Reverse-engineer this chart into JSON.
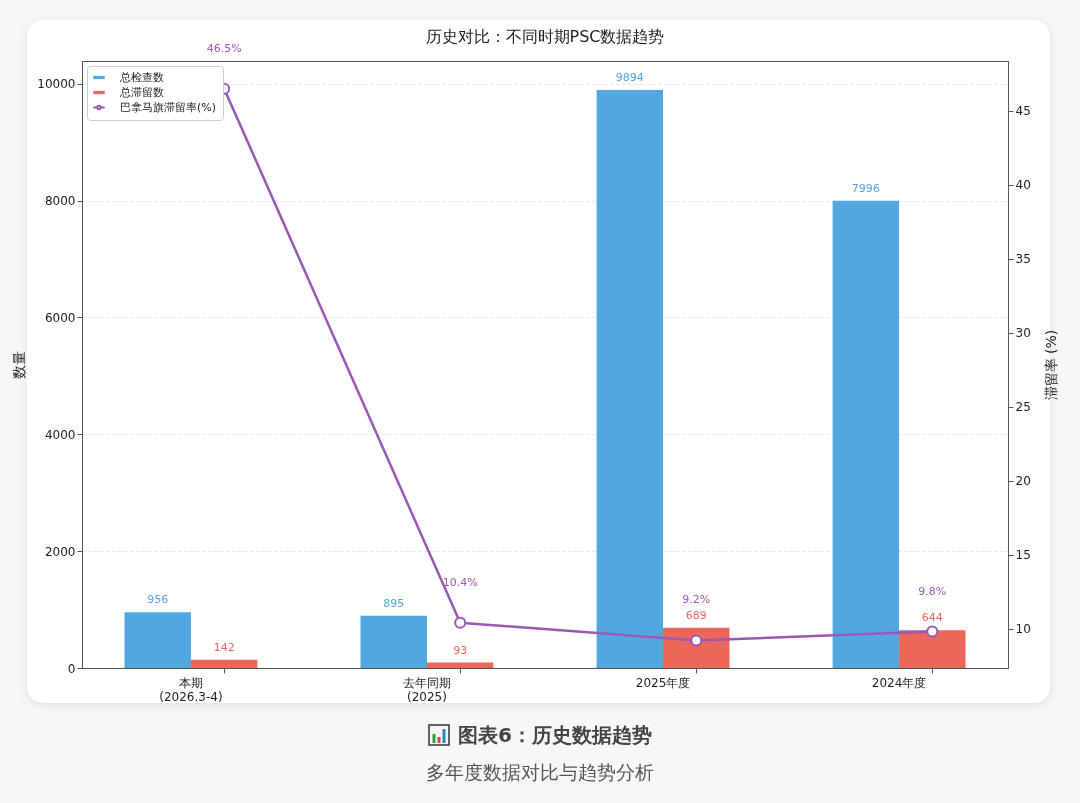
{
  "chart_data": {
    "type": "bar",
    "title": "历史对比：不同时期PSC数据趋势",
    "ylabel": "数量",
    "y2label": "滞留率 (%)",
    "categories": [
      "本期\n(2026.3-4)",
      "去年同期\n(2025)",
      "2025年度",
      "2024年度"
    ],
    "series": [
      {
        "name": "总检查数",
        "color": "#52a7e0",
        "values": [
          956,
          895,
          9894,
          7996
        ]
      },
      {
        "name": "总滞留数",
        "color": "#ea6759",
        "values": [
          142,
          93,
          689,
          644
        ]
      },
      {
        "name": "巴拿马旗滞留率(%)",
        "type": "line",
        "axis": "y2",
        "color": "#9b59b6",
        "values": [
          46.5,
          10.4,
          9.2,
          9.8
        ],
        "value_labels": [
          "46.5%",
          "10.4%",
          "9.2%",
          "9.8%"
        ]
      }
    ],
    "data_labels": true,
    "marker": "circle",
    "line_style": "solid",
    "ylim": [
      0,
      10389
    ],
    "yticks": [
      0,
      2000,
      4000,
      6000,
      8000,
      10000
    ],
    "y2lim": [
      7.34,
      48.37
    ],
    "y2ticks": [
      10,
      15,
      20,
      25,
      30,
      35,
      40,
      45
    ],
    "grid": "y",
    "legend": "top left",
    "annotations": [
      "图表6：历史数据趋势",
      "多年度数据对比与趋势分析"
    ]
  }
}
